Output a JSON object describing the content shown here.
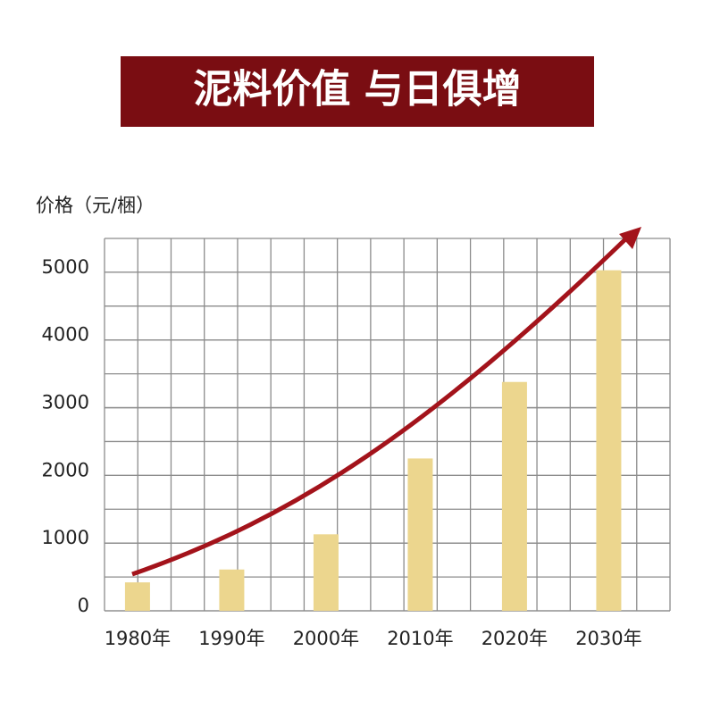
{
  "chart_data": {
    "type": "bar",
    "title": "泥料价值 与日俱增",
    "y_label": "价格（元/梱）",
    "categories": [
      "1980年",
      "1990年",
      "2000年",
      "2010年",
      "2020年",
      "2030年"
    ],
    "values": [
      420,
      610,
      1130,
      2250,
      3380,
      5030
    ],
    "color": "#ecd68e",
    "ylim": [
      0,
      5500
    ],
    "yticks": [
      0,
      1000,
      2000,
      3000,
      4000,
      5000
    ],
    "grid": true
  }
}
